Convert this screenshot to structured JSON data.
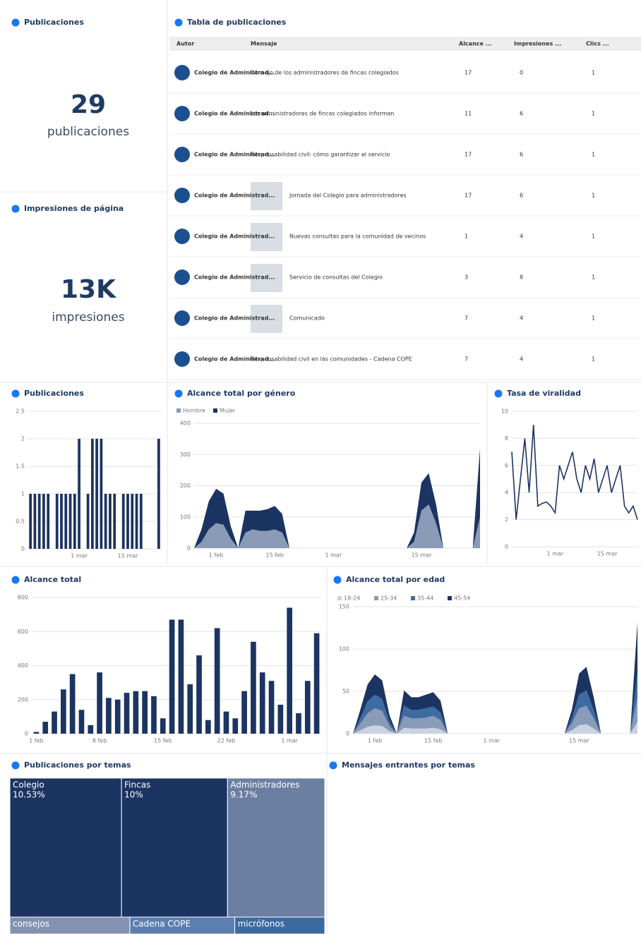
{
  "panels": {
    "posts_kpi": {
      "title": "Publicaciones",
      "value": "29",
      "unit": "publicaciones"
    },
    "impressions_kpi": {
      "title": "Impresiones de página",
      "value": "13K",
      "unit": "impresiones"
    },
    "inbox": {
      "title": "Mensajes entrantes por temas"
    }
  },
  "table": {
    "title": "Tabla de publicaciones",
    "columns": [
      "Autor",
      "Mensaje",
      "Alcance ...",
      "Impresiones ...",
      "Clics ..."
    ],
    "rows": [
      [
        "Colegio de Administrad...",
        "Consejo de los administradores de fincas colegiados",
        17,
        0,
        1
      ],
      [
        "Colegio de Administrad...",
        "Los administradores de fincas colegiados informan",
        11,
        6,
        1
      ],
      [
        "Colegio de Administrad...",
        "Responsabilidad civil: cómo garantizar el servicio",
        17,
        6,
        1
      ],
      [
        "Colegio de Administrad...",
        "Jornada del Colegio para administradores",
        17,
        6,
        1
      ],
      [
        "Colegio de Administrad...",
        "Nuevas consultas para la comunidad de vecinos",
        1,
        4,
        1
      ],
      [
        "Colegio de Administrad...",
        "Servicio de consultas del Colegio",
        3,
        8,
        1
      ],
      [
        "Colegio de Administrad...",
        "Comunicado",
        7,
        4,
        1
      ],
      [
        "Colegio de Administrad...",
        "Responsabilidad civil en las comunidades - Cadena COPE",
        7,
        4,
        1
      ]
    ]
  },
  "chart_data": [
    {
      "type": "bar",
      "title": "Publicaciones",
      "color": "#1c3461",
      "grid": true,
      "categories": [
        null,
        null,
        null,
        null,
        null,
        null,
        null,
        null,
        null,
        null,
        null,
        "1 mar",
        null,
        null,
        null,
        null,
        null,
        null,
        null,
        null,
        null,
        null,
        "15 mar",
        null,
        null,
        null,
        null,
        null,
        null,
        null
      ],
      "values": [
        1,
        1,
        1,
        1,
        1,
        0,
        1,
        1,
        1,
        1,
        1,
        2,
        0,
        1,
        2,
        2,
        2,
        1,
        1,
        1,
        0,
        1,
        1,
        1,
        1,
        1,
        0,
        0,
        0,
        2
      ],
      "ylim": [
        0,
        2.5
      ],
      "yticks": [
        0,
        0.5,
        1,
        1.5,
        2,
        2.5
      ]
    },
    {
      "type": "area",
      "title": "Alcance total por género",
      "grid": true,
      "categories": [
        null,
        null,
        null,
        "1 feb",
        null,
        null,
        null,
        null,
        null,
        null,
        null,
        "15 feb",
        null,
        null,
        null,
        null,
        null,
        null,
        null,
        "1 mar",
        null,
        null,
        null,
        null,
        null,
        null,
        null,
        null,
        null,
        null,
        null,
        "15 mar",
        null,
        null,
        null,
        null,
        null,
        null,
        null,
        null
      ],
      "series": [
        {
          "name": "Hombre",
          "color": "#8a9bb8",
          "values": [
            0,
            20,
            60,
            80,
            75,
            30,
            0,
            50,
            60,
            55,
            55,
            60,
            50,
            0,
            0,
            0,
            0,
            0,
            0,
            0,
            0,
            0,
            0,
            0,
            0,
            0,
            0,
            0,
            0,
            0,
            20,
            120,
            140,
            80,
            0,
            0,
            0,
            0,
            0,
            100
          ]
        },
        {
          "name": "Mujer",
          "color": "#1c3461",
          "values": [
            0,
            40,
            90,
            110,
            100,
            40,
            0,
            70,
            60,
            65,
            70,
            75,
            60,
            0,
            0,
            0,
            0,
            0,
            0,
            0,
            0,
            0,
            0,
            0,
            0,
            0,
            0,
            0,
            0,
            0,
            30,
            90,
            100,
            60,
            0,
            0,
            0,
            0,
            0,
            220
          ]
        }
      ],
      "ylim": [
        0,
        400
      ],
      "yticks": [
        0,
        100,
        200,
        300,
        400
      ]
    },
    {
      "type": "line",
      "title": "Tasa de viralidad",
      "color": "#1c3461",
      "grid": true,
      "categories": [
        null,
        null,
        null,
        null,
        null,
        null,
        null,
        null,
        null,
        null,
        "1 mar",
        null,
        null,
        null,
        null,
        null,
        null,
        null,
        null,
        null,
        null,
        null,
        "15 mar",
        null,
        null,
        null,
        null,
        null,
        null,
        null
      ],
      "values": [
        7,
        2,
        5,
        8,
        4,
        9,
        3,
        3.2,
        3.3,
        3,
        2.5,
        6,
        5,
        6,
        7,
        5,
        4,
        6,
        5,
        6.5,
        4,
        5,
        6,
        4,
        5,
        6,
        3,
        2.5,
        3,
        2
      ],
      "ylim": [
        0,
        10
      ],
      "yticks": [
        0,
        2,
        4,
        6,
        8,
        10
      ]
    },
    {
      "type": "bar",
      "title": "Alcance total",
      "color": "#1c3461",
      "grid": true,
      "categories": [
        "1 feb",
        null,
        null,
        null,
        null,
        null,
        null,
        "8 feb",
        null,
        null,
        null,
        null,
        null,
        null,
        "15 feb",
        null,
        null,
        null,
        null,
        null,
        null,
        "22 feb",
        null,
        null,
        null,
        null,
        null,
        null,
        "1 mar",
        null,
        null,
        null
      ],
      "values": [
        10,
        70,
        130,
        260,
        350,
        140,
        50,
        360,
        210,
        200,
        240,
        250,
        250,
        220,
        90,
        670,
        670,
        290,
        460,
        80,
        620,
        130,
        90,
        250,
        540,
        360,
        310,
        170,
        740,
        120,
        310,
        590
      ],
      "ylim": [
        0,
        800
      ],
      "yticks": [
        0,
        200,
        400,
        600,
        800
      ]
    },
    {
      "type": "area",
      "title": "Alcance total por edad",
      "grid": true,
      "categories": [
        null,
        null,
        null,
        "1 feb",
        null,
        null,
        null,
        null,
        null,
        null,
        null,
        "15 feb",
        null,
        null,
        null,
        null,
        null,
        null,
        null,
        "1 mar",
        null,
        null,
        null,
        null,
        null,
        null,
        null,
        null,
        null,
        null,
        null,
        "15 mar",
        null,
        null,
        null,
        null,
        null,
        null,
        null,
        null
      ],
      "series": [
        {
          "name": "18-24",
          "color": "#c9d3e3",
          "values": [
            0,
            4,
            8,
            10,
            9,
            3,
            0,
            7,
            6,
            6,
            6,
            7,
            5,
            0,
            0,
            0,
            0,
            0,
            0,
            0,
            0,
            0,
            0,
            0,
            0,
            0,
            0,
            0,
            0,
            0,
            4,
            10,
            11,
            6,
            0,
            0,
            0,
            0,
            0,
            14
          ]
        },
        {
          "name": "25-34",
          "color": "#8a9bb8",
          "values": [
            0,
            8,
            16,
            20,
            18,
            6,
            0,
            14,
            12,
            12,
            13,
            14,
            11,
            0,
            0,
            0,
            0,
            0,
            0,
            0,
            0,
            0,
            0,
            0,
            0,
            0,
            0,
            0,
            0,
            0,
            8,
            20,
            22,
            12,
            0,
            0,
            0,
            0,
            0,
            28
          ]
        },
        {
          "name": "35-44",
          "color": "#3d6ba3",
          "values": [
            0,
            6,
            14,
            16,
            14,
            5,
            0,
            12,
            10,
            10,
            11,
            11,
            9,
            0,
            0,
            0,
            0,
            0,
            0,
            0,
            0,
            0,
            0,
            0,
            0,
            0,
            0,
            0,
            0,
            0,
            6,
            16,
            18,
            10,
            0,
            0,
            0,
            0,
            0,
            30
          ]
        },
        {
          "name": "45-54",
          "color": "#1c3461",
          "values": [
            0,
            10,
            20,
            24,
            22,
            8,
            0,
            18,
            15,
            15,
            16,
            17,
            14,
            0,
            0,
            0,
            0,
            0,
            0,
            0,
            0,
            0,
            0,
            0,
            0,
            0,
            0,
            0,
            0,
            0,
            10,
            25,
            28,
            15,
            0,
            0,
            0,
            0,
            0,
            60
          ]
        }
      ],
      "ylim": [
        0,
        150
      ],
      "yticks": [
        0,
        50,
        100,
        150
      ]
    },
    {
      "type": "treemap",
      "title": "Publicaciones por temas",
      "categories": [
        "Colegio",
        "Fincas",
        "Administradores",
        "consejos",
        "Cadena COPE",
        "micrófonos"
      ],
      "values": [
        10.53,
        10,
        9.17,
        8,
        7,
        6
      ],
      "value_labels": [
        "10.53%",
        "10%",
        "9.17%",
        null,
        null,
        null
      ],
      "colors": [
        "#1c3461",
        "#1c3461",
        "#6b7fa3",
        "#8292b0",
        "#5a7fb0",
        "#3a6aa0"
      ]
    }
  ]
}
